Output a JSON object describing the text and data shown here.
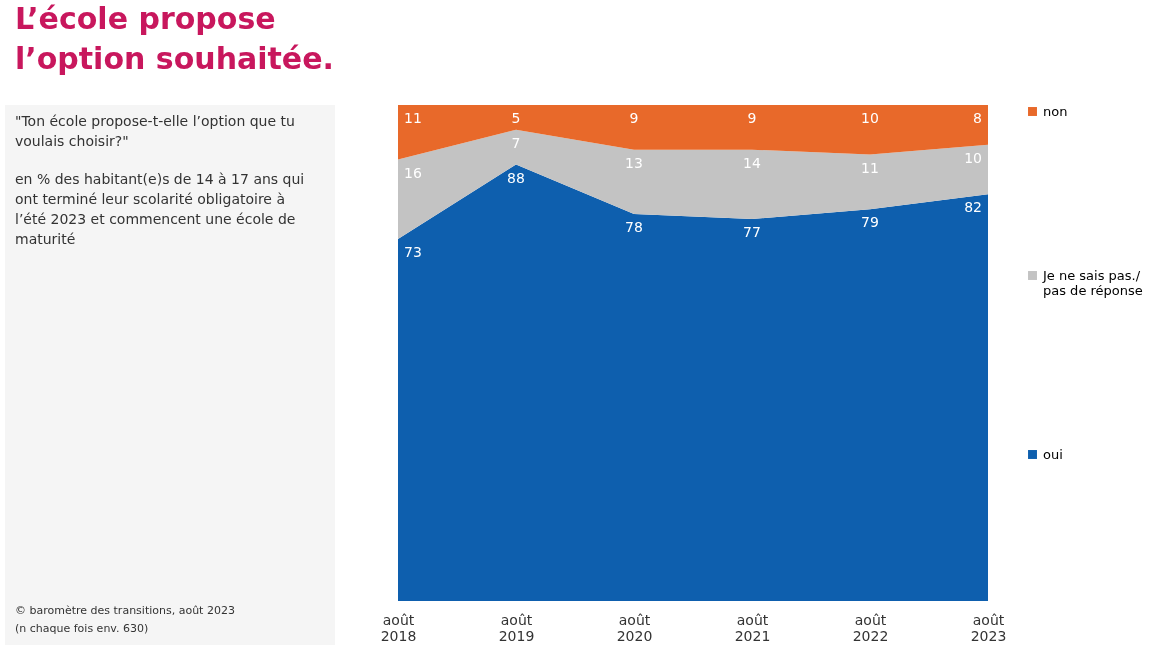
{
  "chart_data": {
    "type": "area",
    "title": "L’école propose l’option souhaitée.",
    "subtitle": "\"Ton école propose-t-elle l’option que tu voulais choisir?\"",
    "annotations": [
      "en % des habitant(e)s de 14 à 17 ans qui ont terminé leur scolarité obligatoire à l’été 2023 et commencent une école de maturité",
      "© baromètre des transitions, août 2023",
      "(n chaque fois env. 630)"
    ],
    "categories": [
      "août 2018",
      "août 2019",
      "août 2020",
      "août 2021",
      "août 2022",
      "août 2023"
    ],
    "stacked": true,
    "data_labels": true,
    "legend": "right",
    "grid": false,
    "series": [
      {
        "name": "oui",
        "color": "#0e5fae",
        "values": [
          73,
          88,
          78,
          77,
          79,
          82
        ]
      },
      {
        "name": "Je ne sais pas./ pas de réponse",
        "color": "#c3c3c3",
        "values": [
          16,
          7,
          13,
          14,
          11,
          10
        ]
      },
      {
        "name": "non",
        "color": "#e8692a",
        "values": [
          11,
          5,
          9,
          9,
          10,
          8
        ]
      }
    ]
  }
}
